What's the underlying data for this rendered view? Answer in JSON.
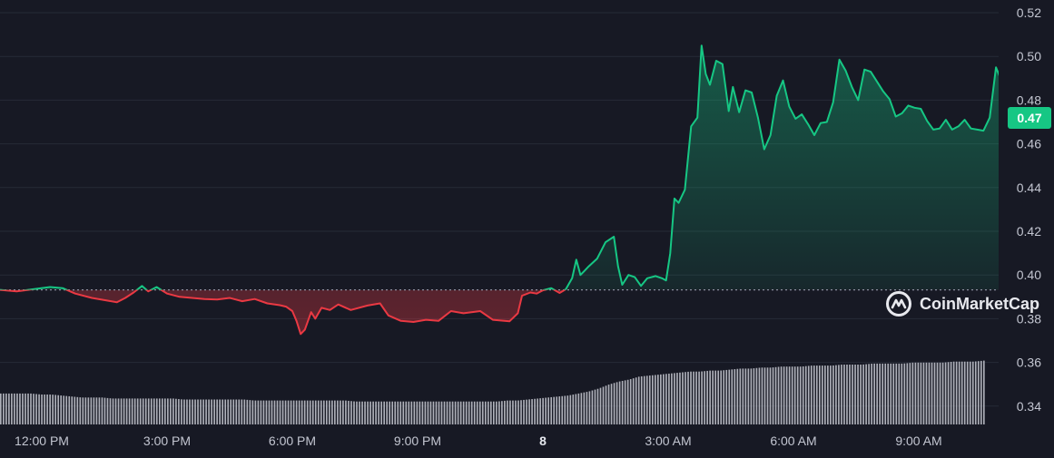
{
  "chart_data": {
    "type": "line",
    "title": "",
    "xlabel": "",
    "ylabel": "",
    "x_ticks": [
      "12:00 PM",
      "3:00 PM",
      "6:00 PM",
      "9:00 PM",
      "8",
      "3:00 AM",
      "6:00 AM",
      "9:00 AM"
    ],
    "x_ticks_bold": [
      "8"
    ],
    "y_ticks": [
      "0.34",
      "0.36",
      "0.38",
      "0.40",
      "0.42",
      "0.44",
      "0.46",
      "0.48",
      "0.50",
      "0.52"
    ],
    "ylim": [
      0.33,
      0.525
    ],
    "x_range_hours": [
      -1,
      23.65
    ],
    "baseline": 0.3932,
    "current_price": "0.47",
    "grid": true,
    "colors": {
      "up": "#16c784",
      "down": "#ea3943",
      "badge": "#16c784"
    },
    "series": [
      {
        "values": [
          [
            -1,
            0.3932
          ],
          [
            -0.6,
            0.3925
          ],
          [
            -0.2,
            0.3935
          ],
          [
            0.2,
            0.3945
          ],
          [
            0.5,
            0.394
          ],
          [
            0.8,
            0.3915
          ],
          [
            1.2,
            0.3895
          ],
          [
            1.5,
            0.3885
          ],
          [
            1.8,
            0.3875
          ],
          [
            2.0,
            0.3895
          ],
          [
            2.2,
            0.392
          ],
          [
            2.4,
            0.395
          ],
          [
            2.55,
            0.3925
          ],
          [
            2.75,
            0.3945
          ],
          [
            3.0,
            0.3915
          ],
          [
            3.3,
            0.39
          ],
          [
            3.6,
            0.3895
          ],
          [
            3.9,
            0.389
          ],
          [
            4.2,
            0.3888
          ],
          [
            4.5,
            0.3895
          ],
          [
            4.8,
            0.388
          ],
          [
            5.1,
            0.389
          ],
          [
            5.4,
            0.387
          ],
          [
            5.7,
            0.3862
          ],
          [
            5.85,
            0.3855
          ],
          [
            6.0,
            0.3835
          ],
          [
            6.1,
            0.379
          ],
          [
            6.2,
            0.373
          ],
          [
            6.3,
            0.375
          ],
          [
            6.45,
            0.383
          ],
          [
            6.55,
            0.38
          ],
          [
            6.7,
            0.385
          ],
          [
            6.9,
            0.384
          ],
          [
            7.1,
            0.3865
          ],
          [
            7.4,
            0.384
          ],
          [
            7.8,
            0.386
          ],
          [
            8.1,
            0.387
          ],
          [
            8.3,
            0.3815
          ],
          [
            8.6,
            0.379
          ],
          [
            8.9,
            0.3785
          ],
          [
            9.2,
            0.3795
          ],
          [
            9.5,
            0.379
          ],
          [
            9.8,
            0.3835
          ],
          [
            10.1,
            0.3825
          ],
          [
            10.5,
            0.3835
          ],
          [
            10.8,
            0.3795
          ],
          [
            11.2,
            0.3788
          ],
          [
            11.4,
            0.3825
          ],
          [
            11.5,
            0.3905
          ],
          [
            11.7,
            0.392
          ],
          [
            11.85,
            0.3915
          ],
          [
            12.0,
            0.393
          ],
          [
            12.2,
            0.394
          ],
          [
            12.4,
            0.3918
          ],
          [
            12.55,
            0.3935
          ],
          [
            12.7,
            0.3985
          ],
          [
            12.8,
            0.407
          ],
          [
            12.9,
            0.4
          ],
          [
            13.0,
            0.402
          ],
          [
            13.1,
            0.404
          ],
          [
            13.3,
            0.4075
          ],
          [
            13.5,
            0.415
          ],
          [
            13.7,
            0.4175
          ],
          [
            13.8,
            0.404
          ],
          [
            13.9,
            0.3955
          ],
          [
            14.05,
            0.4
          ],
          [
            14.2,
            0.399
          ],
          [
            14.35,
            0.395
          ],
          [
            14.5,
            0.3985
          ],
          [
            14.7,
            0.3995
          ],
          [
            14.85,
            0.3985
          ],
          [
            14.95,
            0.3975
          ],
          [
            15.05,
            0.41
          ],
          [
            15.15,
            0.435
          ],
          [
            15.25,
            0.433
          ],
          [
            15.4,
            0.439
          ],
          [
            15.55,
            0.468
          ],
          [
            15.7,
            0.472
          ],
          [
            15.8,
            0.505
          ],
          [
            15.9,
            0.492
          ],
          [
            16.0,
            0.487
          ],
          [
            16.15,
            0.498
          ],
          [
            16.3,
            0.4965
          ],
          [
            16.45,
            0.475
          ],
          [
            16.55,
            0.486
          ],
          [
            16.7,
            0.4745
          ],
          [
            16.85,
            0.4845
          ],
          [
            17.0,
            0.4835
          ],
          [
            17.15,
            0.472
          ],
          [
            17.3,
            0.4575
          ],
          [
            17.45,
            0.464
          ],
          [
            17.6,
            0.482
          ],
          [
            17.75,
            0.489
          ],
          [
            17.9,
            0.477
          ],
          [
            18.05,
            0.4715
          ],
          [
            18.2,
            0.4735
          ],
          [
            18.35,
            0.469
          ],
          [
            18.5,
            0.464
          ],
          [
            18.65,
            0.4695
          ],
          [
            18.8,
            0.47
          ],
          [
            18.95,
            0.479
          ],
          [
            19.1,
            0.4985
          ],
          [
            19.25,
            0.4935
          ],
          [
            19.4,
            0.486
          ],
          [
            19.55,
            0.48
          ],
          [
            19.7,
            0.494
          ],
          [
            19.85,
            0.493
          ],
          [
            20.0,
            0.4885
          ],
          [
            20.15,
            0.484
          ],
          [
            20.3,
            0.4805
          ],
          [
            20.45,
            0.4725
          ],
          [
            20.6,
            0.474
          ],
          [
            20.75,
            0.4775
          ],
          [
            20.9,
            0.4765
          ],
          [
            21.05,
            0.476
          ],
          [
            21.2,
            0.4705
          ],
          [
            21.35,
            0.4665
          ],
          [
            21.5,
            0.467
          ],
          [
            21.65,
            0.471
          ],
          [
            21.8,
            0.4665
          ],
          [
            21.95,
            0.468
          ],
          [
            22.1,
            0.471
          ],
          [
            22.25,
            0.467
          ],
          [
            22.4,
            0.4665
          ],
          [
            22.55,
            0.466
          ],
          [
            22.7,
            0.472
          ],
          [
            22.85,
            0.495
          ],
          [
            23.0,
            0.488
          ],
          [
            23.15,
            0.486
          ],
          [
            23.3,
            0.485
          ],
          [
            23.45,
            0.49
          ],
          [
            23.6,
            0.494
          ],
          [
            23.75,
            0.472
          ],
          [
            23.9,
            0.4715
          ],
          [
            24.05,
            0.474
          ],
          [
            24.2,
            0.47
          ],
          [
            24.35,
            0.47
          ],
          [
            24.5,
            0.465
          ],
          [
            24.65,
            0.462
          ],
          [
            24.8,
            0.4625
          ],
          [
            24.95,
            0.4635
          ],
          [
            25.1,
            0.47
          ],
          [
            25.25,
            0.469
          ],
          [
            25.4,
            0.4705
          ],
          [
            25.55,
            0.47
          ],
          [
            25.7,
            0.4835
          ],
          [
            25.85,
            0.482
          ],
          [
            26.0,
            0.479
          ],
          [
            26.15,
            0.474
          ],
          [
            26.3,
            0.477
          ],
          [
            26.5,
            0.4715
          ]
        ]
      }
    ],
    "volume_values": [
      0.31,
      0.31,
      0.31,
      0.31,
      0.3,
      0.3,
      0.29,
      0.28,
      0.27,
      0.27,
      0.27,
      0.26,
      0.26,
      0.26,
      0.26,
      0.26,
      0.26,
      0.26,
      0.25,
      0.25,
      0.25,
      0.25,
      0.25,
      0.25,
      0.25,
      0.24,
      0.24,
      0.24,
      0.24,
      0.24,
      0.24,
      0.24,
      0.24,
      0.24,
      0.24,
      0.23,
      0.23,
      0.23,
      0.23,
      0.23,
      0.23,
      0.23,
      0.23,
      0.23,
      0.23,
      0.23,
      0.23,
      0.23,
      0.23,
      0.23,
      0.24,
      0.24,
      0.25,
      0.26,
      0.27,
      0.28,
      0.29,
      0.31,
      0.33,
      0.36,
      0.4,
      0.43,
      0.45,
      0.48,
      0.49,
      0.5,
      0.51,
      0.52,
      0.53,
      0.53,
      0.54,
      0.54,
      0.55,
      0.56,
      0.56,
      0.57,
      0.57,
      0.58,
      0.58,
      0.58,
      0.59,
      0.59,
      0.59,
      0.6,
      0.6,
      0.6,
      0.61,
      0.61,
      0.61,
      0.61,
      0.62,
      0.62,
      0.62,
      0.62,
      0.63,
      0.63,
      0.63,
      0.64
    ]
  },
  "price_badge": {
    "label": "0.47"
  },
  "watermark": {
    "brand": "CoinMarketCap"
  }
}
